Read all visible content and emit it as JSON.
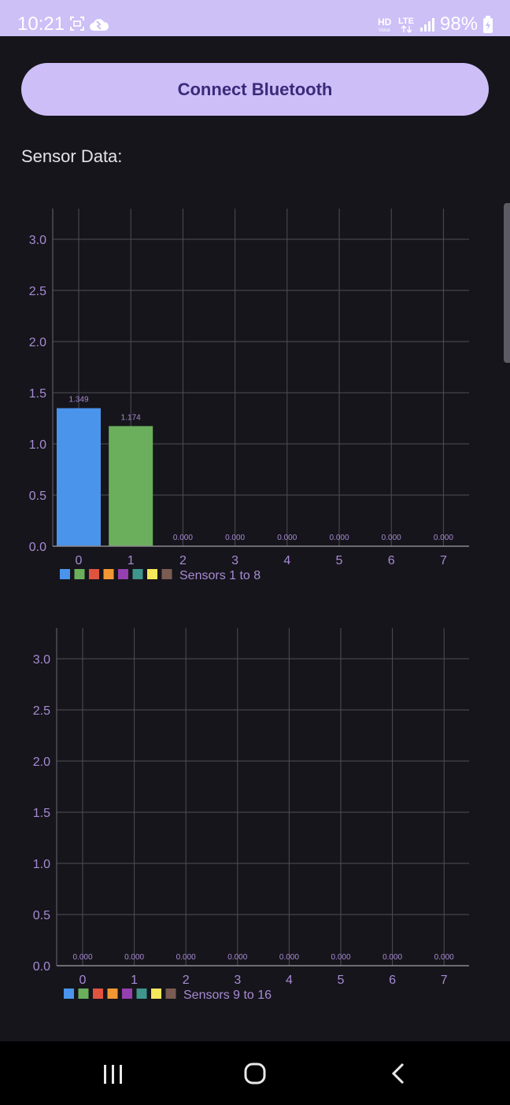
{
  "status_bar": {
    "time": "10:21",
    "battery": "98%",
    "icons": [
      "screenshot-icon",
      "cloud-icon",
      "hd-voice-icon",
      "lte-icon",
      "signal-icon",
      "battery-charging-icon"
    ]
  },
  "connect_button": {
    "label": "Connect Bluetooth"
  },
  "section": {
    "label": "Sensor Data:"
  },
  "chart_data": [
    {
      "type": "bar",
      "categories": [
        "0",
        "1",
        "2",
        "3",
        "4",
        "5",
        "6",
        "7"
      ],
      "values": [
        1.349,
        1.174,
        0.0,
        0.0,
        0.0,
        0.0,
        0.0,
        0.0
      ],
      "value_labels": [
        "1.349",
        "1.174",
        "0.000",
        "0.000",
        "0.000",
        "0.000",
        "0.000",
        "0.000"
      ],
      "ylim": [
        0,
        3.3
      ],
      "yticks": [
        "0.0",
        "0.5",
        "1.0",
        "1.5",
        "2.0",
        "2.5",
        "3.0"
      ],
      "legend": "Sensors 1 to 8",
      "legend_position": "bottom-left",
      "grid": true,
      "colors": [
        "#4a94ec",
        "#6baf5c",
        "#e0533f",
        "#f39734",
        "#9540b0",
        "#3f968d",
        "#f5e85b",
        "#7a5c53"
      ],
      "bar_colors": [
        "#4a94ec",
        "#6baf5c",
        "#4a94ec",
        "#4a94ec",
        "#4a94ec",
        "#4a94ec",
        "#4a94ec",
        "#4a94ec"
      ]
    },
    {
      "type": "bar",
      "categories": [
        "0",
        "1",
        "2",
        "3",
        "4",
        "5",
        "6",
        "7"
      ],
      "values": [
        0.0,
        0.0,
        0.0,
        0.0,
        0.0,
        0.0,
        0.0,
        0.0
      ],
      "value_labels": [
        "0.000",
        "0.000",
        "0.000",
        "0.000",
        "0.000",
        "0.000",
        "0.000",
        "0.000"
      ],
      "ylim": [
        0,
        3.3
      ],
      "yticks": [
        "0.0",
        "0.5",
        "1.0",
        "1.5",
        "2.0",
        "2.5",
        "3.0"
      ],
      "legend": "Sensors 9 to 16",
      "legend_position": "bottom-left",
      "grid": true,
      "colors": [
        "#4a94ec",
        "#6baf5c",
        "#e0533f",
        "#f39734",
        "#9540b0",
        "#3f968d",
        "#f5e85b",
        "#7a5c53"
      ],
      "bar_colors": [
        "#4a94ec",
        "#6baf5c",
        "#e0533f",
        "#f39734",
        "#9540b0",
        "#3f968d",
        "#f5e85b",
        "#7a5c53"
      ]
    }
  ],
  "nav_bar": {
    "buttons": [
      "recent-apps-icon",
      "home-icon",
      "back-icon"
    ]
  },
  "theme": {
    "background": "#16151b",
    "accent": "#cdbef8",
    "axis_label_color": "#a78bd4",
    "grid_color": "#4f4e55"
  }
}
